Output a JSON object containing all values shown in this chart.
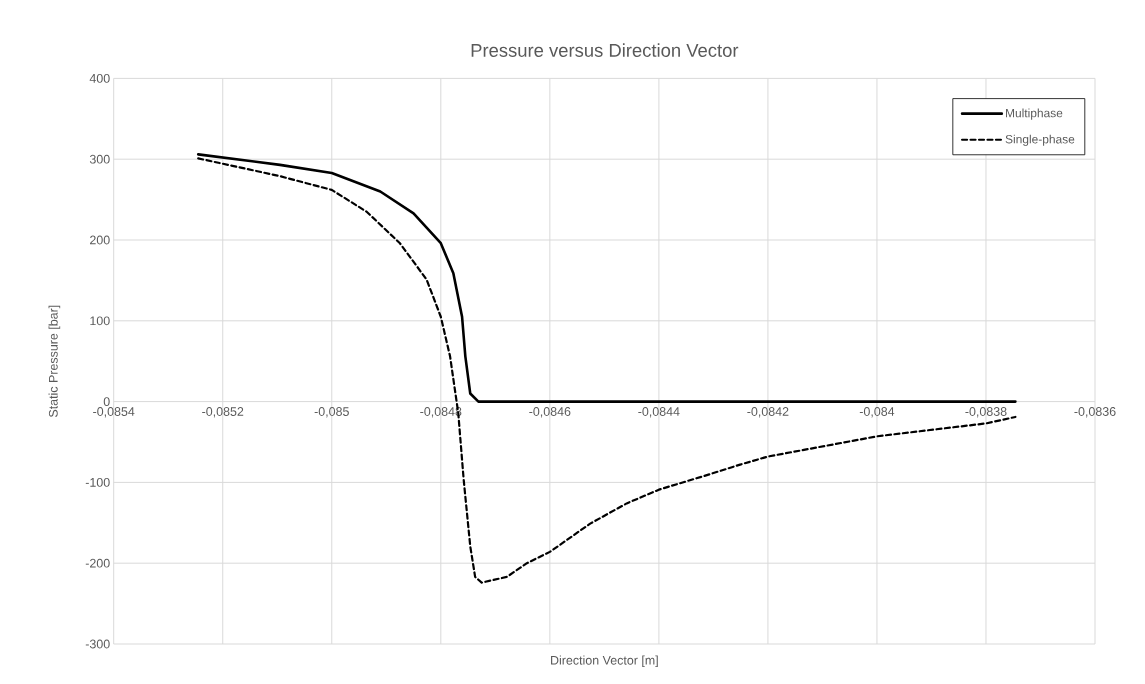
{
  "chart_data": {
    "type": "line",
    "title": "Pressure versus Direction Vector",
    "xlabel": "Direction Vector  [m]",
    "ylabel": "Static Pressure  [bar]",
    "xlim": [
      -0.0854,
      -0.0836
    ],
    "ylim": [
      -300,
      400
    ],
    "xticks": [
      {
        "value": -0.0854,
        "label": "-0,0854"
      },
      {
        "value": -0.0852,
        "label": "-0,0852"
      },
      {
        "value": -0.085,
        "label": "-0,085"
      },
      {
        "value": -0.0848,
        "label": "-0,0848"
      },
      {
        "value": -0.0846,
        "label": "-0,0846"
      },
      {
        "value": -0.0844,
        "label": "-0,0844"
      },
      {
        "value": -0.0842,
        "label": "-0,0842"
      },
      {
        "value": -0.084,
        "label": "-0,084"
      },
      {
        "value": -0.0838,
        "label": "-0,0838"
      },
      {
        "value": -0.0836,
        "label": "-0,0836"
      }
    ],
    "yticks": [
      -300,
      -200,
      -100,
      0,
      100,
      200,
      300,
      400
    ],
    "grid": true,
    "legend": "top right",
    "marker": "none",
    "series": [
      {
        "name": "Multiphase",
        "color": "#000000",
        "line_style": "solid",
        "x": [
          -0.085245,
          -0.085095,
          -0.085,
          -0.084911,
          -0.08485,
          -0.0848,
          -0.084777,
          -0.084761,
          -0.084755,
          -0.084746,
          -0.084731,
          -0.083746
        ],
        "values": [
          306,
          293,
          283,
          260,
          233,
          196,
          159,
          105,
          56,
          10,
          0,
          0
        ]
      },
      {
        "name": "Single-phase",
        "color": "#000000",
        "line_style": "dashed",
        "x": [
          -0.085245,
          -0.085095,
          -0.085,
          -0.084936,
          -0.084875,
          -0.084826,
          -0.0848,
          -0.084783,
          -0.084768,
          -0.084758,
          -0.084746,
          -0.084737,
          -0.084725,
          -0.084679,
          -0.084642,
          -0.0846,
          -0.084526,
          -0.084459,
          -0.0844,
          -0.084312,
          -0.084251,
          -0.0842,
          -0.084,
          -0.0838,
          -0.083746
        ],
        "values": [
          301,
          279,
          262,
          235,
          196,
          151,
          105,
          56,
          -14,
          -97,
          -179,
          -217,
          -224,
          -217,
          -200,
          -186,
          -151,
          -126,
          -109,
          -91,
          -78,
          -68,
          -43,
          -27,
          -19
        ]
      }
    ]
  }
}
